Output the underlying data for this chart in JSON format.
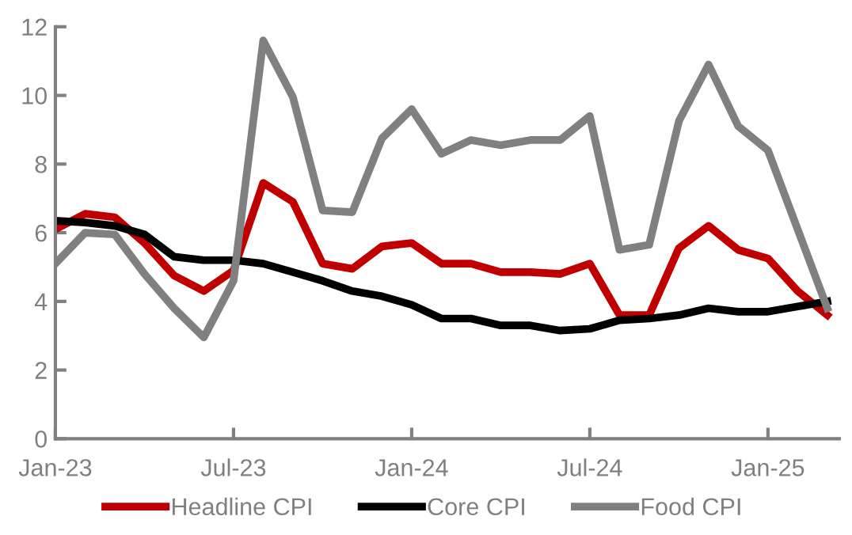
{
  "chart_data": {
    "type": "line",
    "categories": [
      "Jan-23",
      null,
      null,
      null,
      null,
      null,
      "Jul-23",
      null,
      null,
      null,
      null,
      null,
      "Jan-24",
      null,
      null,
      null,
      null,
      null,
      "Jul-24",
      null,
      null,
      null,
      null,
      null,
      "Jan-25",
      null,
      null
    ],
    "series": [
      {
        "name": "Headline CPI",
        "color": "#c00000",
        "values": [
          6.1,
          6.55,
          6.45,
          5.7,
          4.75,
          4.3,
          4.9,
          7.45,
          6.9,
          5.1,
          4.95,
          5.6,
          5.7,
          5.1,
          5.1,
          4.85,
          4.85,
          4.8,
          5.1,
          3.6,
          3.6,
          5.55,
          6.2,
          5.5,
          5.25,
          4.3,
          3.6
        ]
      },
      {
        "name": "Core CPI",
        "color": "#000000",
        "values": [
          6.35,
          6.3,
          6.2,
          5.95,
          5.3,
          5.2,
          5.2,
          5.1,
          4.85,
          4.6,
          4.3,
          4.15,
          3.9,
          3.5,
          3.5,
          3.3,
          3.3,
          3.15,
          3.2,
          3.45,
          3.5,
          3.6,
          3.8,
          3.7,
          3.7,
          3.85,
          4.0
        ]
      },
      {
        "name": "Food CPI",
        "color": "#808080",
        "values": [
          5.1,
          6.0,
          5.95,
          4.8,
          3.8,
          2.95,
          4.6,
          11.6,
          9.95,
          6.65,
          6.6,
          8.75,
          9.6,
          8.3,
          8.7,
          8.55,
          8.7,
          8.7,
          9.4,
          5.5,
          5.65,
          9.25,
          10.9,
          9.1,
          8.4,
          6.1,
          3.8
        ]
      }
    ],
    "ylim": [
      0,
      12
    ],
    "yticks": [
      0,
      2,
      4,
      6,
      8,
      10,
      12
    ],
    "grid": false,
    "legend": "bottom",
    "marker": "none",
    "line_style": "solid"
  }
}
